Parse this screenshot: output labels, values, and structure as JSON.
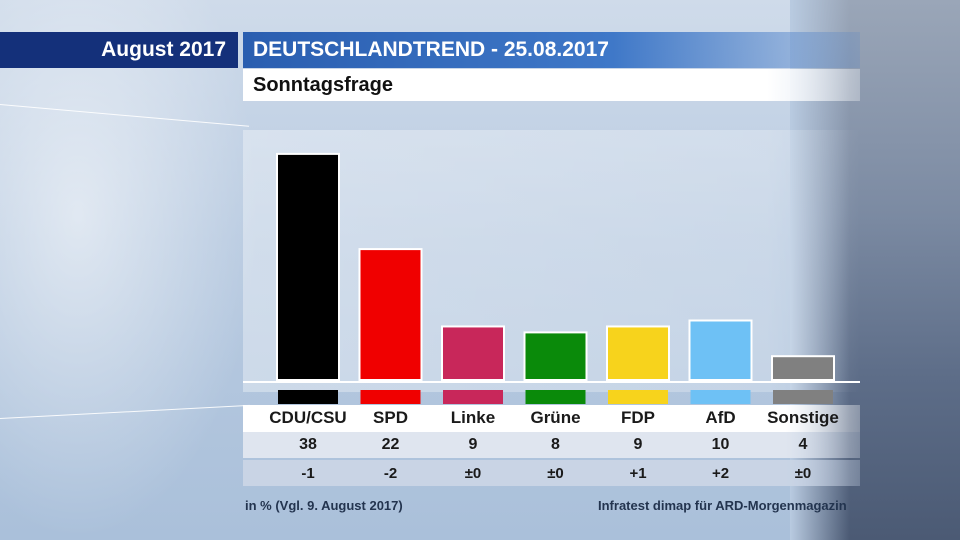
{
  "header": {
    "date_label": "August 2017",
    "title": "DEUTSCHLANDTREND - 25.08.2017",
    "subtitle": "Sonntagsfrage"
  },
  "chart_data": {
    "type": "bar",
    "title": "Sonntagsfrage",
    "categories": [
      "CDU/CSU",
      "SPD",
      "Linke",
      "Grüne",
      "FDP",
      "AfD",
      "Sonstige"
    ],
    "values": [
      38,
      22,
      9,
      8,
      9,
      10,
      4
    ],
    "value_labels": [
      "38",
      "22",
      "9",
      "8",
      "9",
      "10",
      "4"
    ],
    "changes": [
      "-1",
      "-2",
      "±0",
      "±0",
      "+1",
      "+2",
      "±0"
    ],
    "colors": [
      "#000000",
      "#f00000",
      "#c8275a",
      "#0a8a0a",
      "#f7d31c",
      "#6ec1f5",
      "#808080"
    ],
    "ylim": [
      0,
      40
    ],
    "grid": false,
    "legend": "none"
  },
  "footer": {
    "unit_note": "in % (Vgl. 9. August 2017)",
    "source": "Infratest dimap für ARD-Morgenmagazin"
  }
}
